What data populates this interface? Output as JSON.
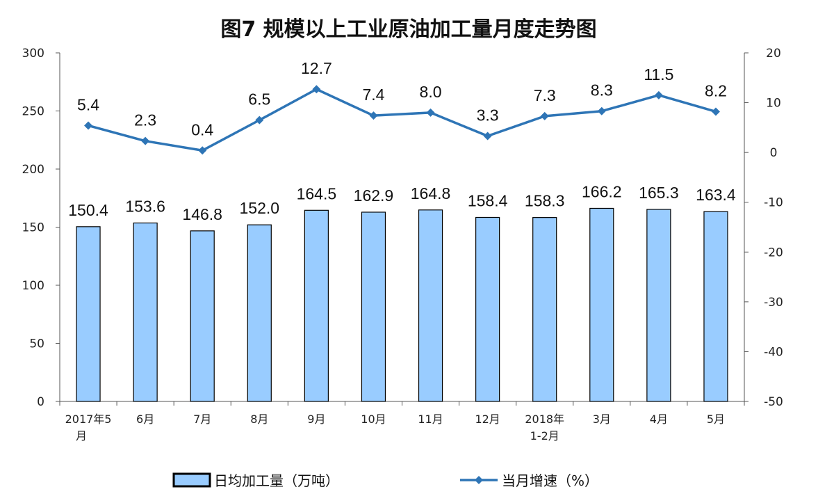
{
  "chart_data": {
    "type": "bar+line",
    "title": "图7  规模以上工业原油加工量月度走势图",
    "categories": [
      [
        "2017年5",
        "月"
      ],
      [
        "6月"
      ],
      [
        "7月"
      ],
      [
        "8月"
      ],
      [
        "9月"
      ],
      [
        "10月"
      ],
      [
        "11月"
      ],
      [
        "12月"
      ],
      [
        "2018年",
        "1-2月"
      ],
      [
        "3月"
      ],
      [
        "4月"
      ],
      [
        "5月"
      ]
    ],
    "series": [
      {
        "name": "日均加工量（万吨）",
        "type": "bar",
        "axis": "left",
        "color": "#99ccff",
        "values": [
          150.4,
          153.6,
          146.8,
          152.0,
          164.5,
          162.9,
          164.8,
          158.4,
          158.3,
          166.2,
          165.3,
          163.4
        ],
        "labels": [
          "150.4",
          "153.6",
          "146.8",
          "152.0",
          "164.5",
          "162.9",
          "164.8",
          "158.4",
          "158.3",
          "166.2",
          "165.3",
          "163.4"
        ]
      },
      {
        "name": "当月增速（%）",
        "type": "line",
        "axis": "right",
        "color": "#2e75b6",
        "values": [
          5.4,
          2.3,
          0.4,
          6.5,
          12.7,
          7.4,
          8.0,
          3.3,
          7.3,
          8.3,
          11.5,
          8.2
        ],
        "labels": [
          "5.4",
          "2.3",
          "0.4",
          "6.5",
          "12.7",
          "7.4",
          "8.0",
          "3.3",
          "7.3",
          "8.3",
          "11.5",
          "8.2"
        ]
      }
    ],
    "y_left": {
      "range": [
        0,
        300
      ],
      "ticks": [
        "0",
        "50",
        "100",
        "150",
        "200",
        "250",
        "300"
      ]
    },
    "y_right": {
      "range": [
        -50,
        20
      ],
      "ticks": [
        "-50",
        "-40",
        "-30",
        "-20",
        "-10",
        "0",
        "10",
        "20"
      ]
    },
    "grid": false,
    "legend": "bottom"
  }
}
